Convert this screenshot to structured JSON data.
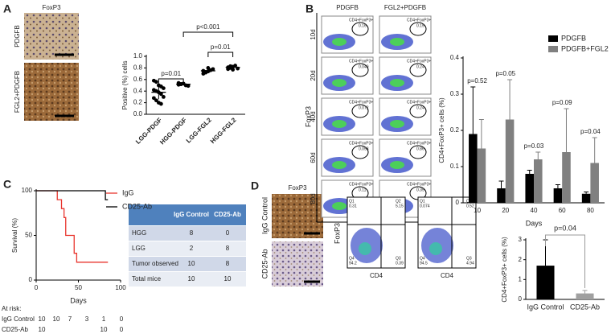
{
  "panel_labels": [
    "A",
    "B",
    "C",
    "D",
    "E"
  ],
  "panel_a": {
    "title": "FoxP3",
    "row_labels": [
      "PDGFB",
      "FGL2+PDGFB"
    ]
  },
  "panel_b_flow": {
    "columns": [
      "PDGFB",
      "FGL2+PDGFB"
    ],
    "rows": [
      "10d",
      "20d",
      "40d",
      "60d",
      "80d"
    ],
    "y_label": "FoxP3",
    "x_label": "CD4",
    "gate_label": "CD4+FoxP3+",
    "gate_values": [
      [
        "0.16",
        "0.15"
      ],
      [
        "0.049",
        "0.24"
      ],
      [
        "0.072",
        "0.24"
      ],
      [
        "0.053",
        "0.86"
      ],
      [
        "0.11",
        "0.35"
      ]
    ]
  },
  "panel_c_table": {
    "headers": [
      "IgG Control",
      "CD25-Ab"
    ],
    "rows": [
      [
        "HGG",
        8,
        0
      ],
      [
        "LGG",
        2,
        8
      ],
      [
        "Tumor observed",
        10,
        8
      ],
      [
        "Total mice",
        10,
        10
      ]
    ]
  },
  "at_risk": {
    "title": "At risk:",
    "rows": [
      {
        "name": "IgG Control",
        "values": [
          10,
          10,
          7,
          3,
          1,
          0
        ]
      },
      {
        "name": "CD25-Ab",
        "values": [
          10,
          null,
          null,
          null,
          10,
          0
        ]
      }
    ]
  },
  "panel_d": {
    "title": "FoxP3",
    "row_labels": [
      "IgG Control",
      "CD25-Ab"
    ]
  },
  "panel_e_flow": {
    "x_label": "CD4",
    "y_label": "FoxP3",
    "quadrant_names": [
      "Q1",
      "Q2",
      "Q3",
      "Q4"
    ],
    "plots": [
      [
        "0.31",
        "5.15",
        "0.39",
        "94.2"
      ],
      [
        "0.074",
        "0.52",
        "4.94",
        "94.5"
      ]
    ]
  },
  "chart_data": [
    {
      "type": "dot",
      "y_label": "Positive (%) cells",
      "categories": [
        "LGG-PDGF",
        "HGG-PDGF",
        "LGG-FGL2",
        "HGG-FGL2"
      ],
      "points": [
        [
          0.58,
          0.56,
          0.5,
          0.48,
          0.45,
          0.42,
          0.4,
          0.38,
          0.35,
          0.3,
          0.28,
          0.24,
          0.2,
          0.18
        ],
        [
          0.51,
          0.52,
          0.53,
          0.5,
          0.49,
          0.54,
          0.52
        ],
        [
          0.7,
          0.72,
          0.74,
          0.76,
          0.78,
          0.75,
          0.73,
          0.8
        ],
        [
          0.78,
          0.8,
          0.82,
          0.84,
          0.79,
          0.81,
          0.83,
          0.77
        ]
      ],
      "means": [
        0.38,
        0.52,
        0.75,
        0.81
      ],
      "errors": [
        0.12,
        0.02,
        0.04,
        0.03
      ],
      "comparisons": [
        "p=0.01",
        "p=0.01",
        "p<0.001"
      ],
      "ylim": [
        0,
        1
      ],
      "yticks": [
        {
          "value": 0,
          "label": "0.0"
        },
        0.2,
        0.4,
        0.6,
        0.8,
        {
          "value": 1,
          "label": "1.0"
        }
      ]
    },
    {
      "type": "bar",
      "y_label": "CD4+FoxP3+ cells (%)",
      "x_label": "Days",
      "categories": [
        "10",
        "20",
        "40",
        "60",
        "80"
      ],
      "series": [
        {
          "name": "PDGFB",
          "color": "#000000",
          "values": [
            0.19,
            0.04,
            0.08,
            0.04,
            0.025
          ],
          "errors": [
            0.13,
            0.02,
            0.01,
            0.01,
            0.005
          ]
        },
        {
          "name": "PDGFB+FGL2",
          "color": "#808080",
          "values": [
            0.15,
            0.23,
            0.12,
            0.14,
            0.11
          ],
          "errors": [
            0.08,
            0.11,
            0.02,
            0.12,
            0.07
          ]
        }
      ],
      "p_values": [
        "p=0.52",
        "p=0.05",
        "p=0.03",
        "p=0.09",
        "p=0.04"
      ],
      "ylim": [
        0,
        0.4
      ],
      "yticks": [
        0,
        0.1,
        0.2,
        0.3,
        0.4
      ]
    },
    {
      "type": "line",
      "y_label": "Survival (%)",
      "x_label": "Days",
      "series": [
        {
          "name": "IgG",
          "color": "#e8352e",
          "x": [
            0,
            25,
            25,
            30,
            30,
            33,
            33,
            35,
            35,
            45,
            45,
            48,
            48,
            85
          ],
          "values": [
            100,
            100,
            90,
            90,
            80,
            80,
            70,
            70,
            50,
            50,
            30,
            30,
            20,
            20
          ]
        },
        {
          "name": "CD25-Ab",
          "color": "#000000",
          "x": [
            0,
            82,
            82,
            85
          ],
          "values": [
            100,
            100,
            90,
            90
          ]
        }
      ],
      "xlim": [
        0,
        100
      ],
      "xticks": [
        0,
        50,
        100
      ],
      "ylim": [
        0,
        100
      ],
      "yticks": [
        0,
        50,
        100
      ]
    },
    {
      "type": "bar",
      "y_label": "CD4+FoxP3+ cells (%)",
      "categories": [
        "IgG Control",
        "CD25-Ab"
      ],
      "values": [
        1.7,
        0.3
      ],
      "errors": [
        1.3,
        0.15
      ],
      "colors": [
        "#000000",
        "#a0a0a0"
      ],
      "annotation": "p=0.04",
      "ylim": [
        0,
        3
      ],
      "yticks": [
        0,
        1,
        2,
        3
      ]
    }
  ]
}
